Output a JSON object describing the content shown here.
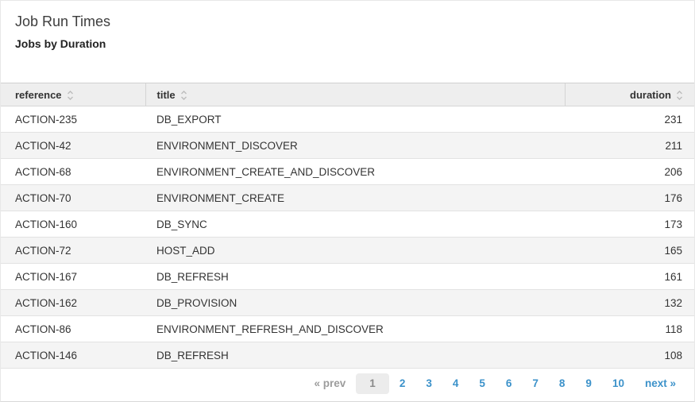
{
  "header": {
    "title": "Job Run Times",
    "subtitle": "Jobs by Duration"
  },
  "table": {
    "columns": [
      {
        "key": "reference",
        "label": "reference",
        "sortable": true
      },
      {
        "key": "title",
        "label": "title",
        "sortable": true
      },
      {
        "key": "duration",
        "label": "duration",
        "sortable": true
      }
    ],
    "rows": [
      {
        "reference": "ACTION-235",
        "title": "DB_EXPORT",
        "duration": 231
      },
      {
        "reference": "ACTION-42",
        "title": "ENVIRONMENT_DISCOVER",
        "duration": 211
      },
      {
        "reference": "ACTION-68",
        "title": "ENVIRONMENT_CREATE_AND_DISCOVER",
        "duration": 206
      },
      {
        "reference": "ACTION-70",
        "title": "ENVIRONMENT_CREATE",
        "duration": 176
      },
      {
        "reference": "ACTION-160",
        "title": "DB_SYNC",
        "duration": 173
      },
      {
        "reference": "ACTION-72",
        "title": "HOST_ADD",
        "duration": 165
      },
      {
        "reference": "ACTION-167",
        "title": "DB_REFRESH",
        "duration": 161
      },
      {
        "reference": "ACTION-162",
        "title": "DB_PROVISION",
        "duration": 132
      },
      {
        "reference": "ACTION-86",
        "title": "ENVIRONMENT_REFRESH_AND_DISCOVER",
        "duration": 118
      },
      {
        "reference": "ACTION-146",
        "title": "DB_REFRESH",
        "duration": 108
      }
    ]
  },
  "pagination": {
    "prev_label": "« prev",
    "pages": [
      "1",
      "2",
      "3",
      "4",
      "5",
      "6",
      "7",
      "8",
      "9",
      "10"
    ],
    "current_page": "1",
    "next_label": "next »"
  },
  "icons": {
    "sort": "up-down-chevrons"
  },
  "colors": {
    "link_blue": "#3c92ca",
    "header_bg": "#eeeeee",
    "row_alt_bg": "#f4f4f4",
    "row_border": "#e2e2e2",
    "prev_gray": "#9c9c9c",
    "current_page_bg": "#ececec"
  }
}
